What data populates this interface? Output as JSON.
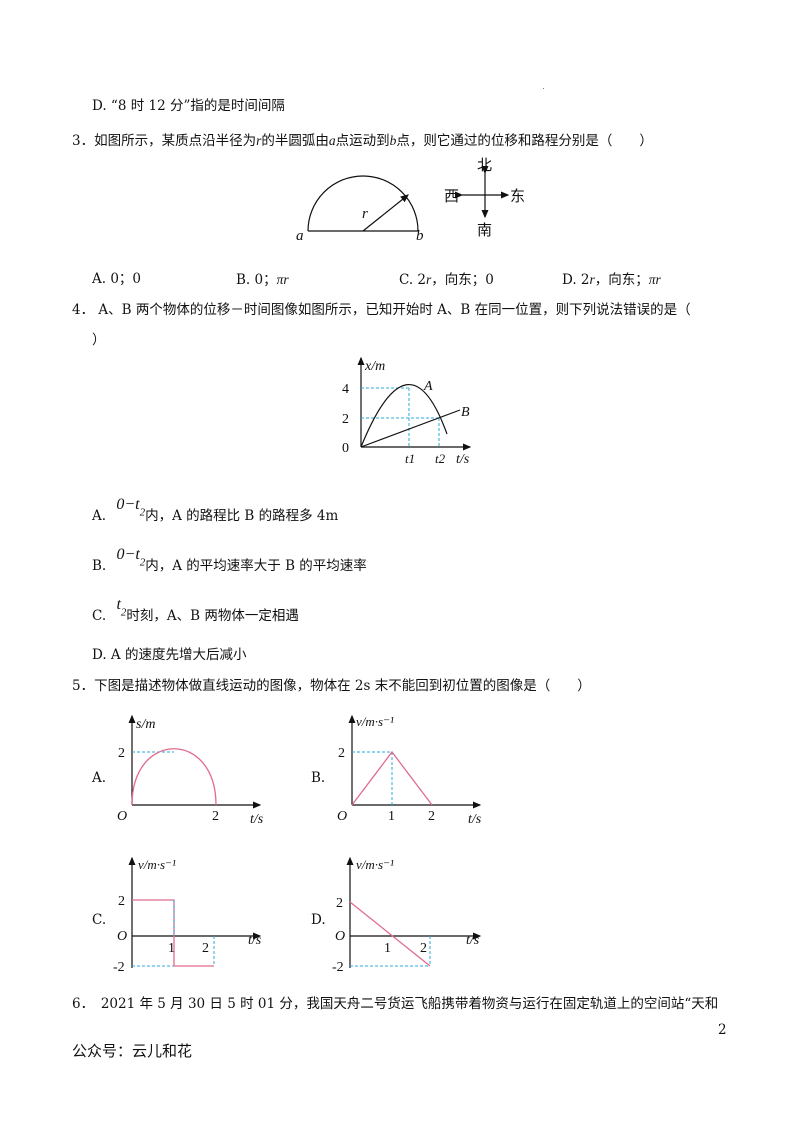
{
  "page_number": "2",
  "footer_text": "公众号：云儿和花",
  "q2": {
    "option_d": "D. “8 时 12 分”指的是时间间隔"
  },
  "q3": {
    "number": "3．",
    "stem_before_r": "如图所示，某质点沿半径为",
    "r": "r",
    "stem_mid": "的半圆弧由",
    "a": "a",
    "stem_mid2": "点运动到",
    "b": "b",
    "stem_after": "点，则它通过的位移和路程分别是（　　）",
    "figure": {
      "point_a": "a",
      "point_b": "b",
      "radius_label": "r",
      "north": "北",
      "south": "南",
      "west": "西",
      "east": "东"
    },
    "options": [
      {
        "label": "A. 0；0"
      },
      {
        "label": "B. 0；",
        "tail": "πr"
      },
      {
        "label": "C. 2",
        "var": "r",
        "tail": "，向东；0"
      },
      {
        "label": "D. 2",
        "var": "r",
        "tail": "，向东；",
        "tail2": "πr"
      }
    ]
  },
  "q4": {
    "number": "4．",
    "stem_line1": " A、B 两个物体的位移－时间图像如图所示，已知开始时 A、B 在同一位置，则下列说法错误的是（",
    "stem_line2": "）",
    "graph": {
      "ylabel": "x/m",
      "xlabel": "t/s",
      "origin": "0",
      "y_ticks": [
        "4",
        "2"
      ],
      "x_ticks": [
        "t1",
        "t2"
      ],
      "curve_a_label": "A",
      "line_b_label": "B"
    },
    "options": [
      {
        "prefix": "A.",
        "math": "0−t",
        "sub": "2",
        "text": "内，A 的路程比 B 的路程多 4m"
      },
      {
        "prefix": "B.",
        "math": "0−t",
        "sub": "2",
        "text": "内，A 的平均速率大于 B 的平均速率"
      },
      {
        "prefix": "C.",
        "math": "t",
        "sub": "2",
        "text": "时刻，A、B 两物体一定相遇"
      },
      {
        "prefix": "",
        "math": "",
        "sub": "",
        "text": "D. A 的速度先增大后减小"
      }
    ]
  },
  "q5": {
    "number": "5．",
    "stem": "下图是描述物体做直线运动的图像，物体在 2s 末不能回到初位置的图像是（　　）",
    "graphs": [
      {
        "option": "A.",
        "ylabel": "s/m",
        "xlabel": "t/s",
        "origin": "O",
        "y_ticks": [
          "2"
        ],
        "x_ticks": [
          "2"
        ]
      },
      {
        "option": "B.",
        "ylabel": "v/m·s⁻¹",
        "xlabel": "t/s",
        "origin": "O",
        "y_ticks": [
          "2"
        ],
        "x_ticks": [
          "1",
          "2"
        ]
      },
      {
        "option": "C.",
        "ylabel": "v/m·s⁻¹",
        "xlabel": "t/s",
        "origin": "O",
        "y_ticks": [
          "2",
          "-2"
        ],
        "x_ticks": [
          "1",
          "2"
        ]
      },
      {
        "option": "D.",
        "ylabel": "v/m·s⁻¹",
        "xlabel": "t/s",
        "origin": "O",
        "y_ticks": [
          "2",
          "-2"
        ],
        "x_ticks": [
          "1",
          "2"
        ]
      }
    ]
  },
  "q6": {
    "stem": "6．　2021 年 5 月 30 日 5 时 01 分，我国天舟二号货运飞船携带着物资与运行在固定轨道上的空间站“天和"
  },
  "colors": {
    "curve": "#e06c8c",
    "guide": "#2aa8d8",
    "text": "#111111"
  }
}
